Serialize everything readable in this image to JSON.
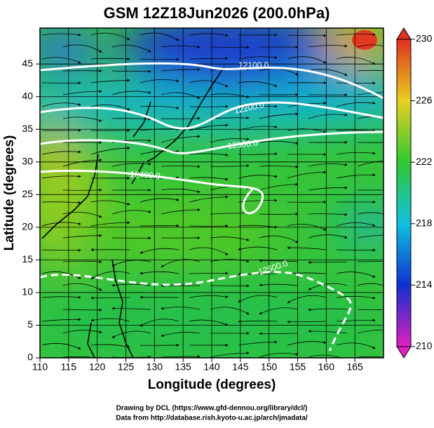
{
  "map": {
    "title": "GSM 12Z18Jun2026 (200.0hPa)",
    "x_label": "Longitude (degrees)",
    "y_label": "Latitude  (degrees)",
    "xlim": [
      110,
      170
    ],
    "ylim": [
      0,
      50.5
    ],
    "xticks": [
      110,
      115,
      120,
      125,
      130,
      135,
      140,
      145,
      150,
      155,
      160,
      165
    ],
    "yticks": [
      0,
      5,
      10,
      15,
      20,
      25,
      30,
      35,
      40,
      45
    ],
    "grid": true,
    "colorbar": {
      "lim": [
        210,
        230
      ],
      "ticks": [
        210,
        214,
        218,
        222,
        226,
        230
      ],
      "colors": [
        "#e020c0",
        "#1030d0",
        "#10c0e0",
        "#30c830",
        "#e8d020",
        "#e03020"
      ]
    },
    "contour_labels": [
      "12100.0",
      "12200.0",
      "12300.0",
      "12400.0",
      "12500.0"
    ]
  },
  "footer": [
    "Drawing by DCL (https://www.gfd-dennou.org/library/dcl/)",
    "Data from http://database.rish.kyoto-u.ac.jp/arch/jmadata/"
  ]
}
